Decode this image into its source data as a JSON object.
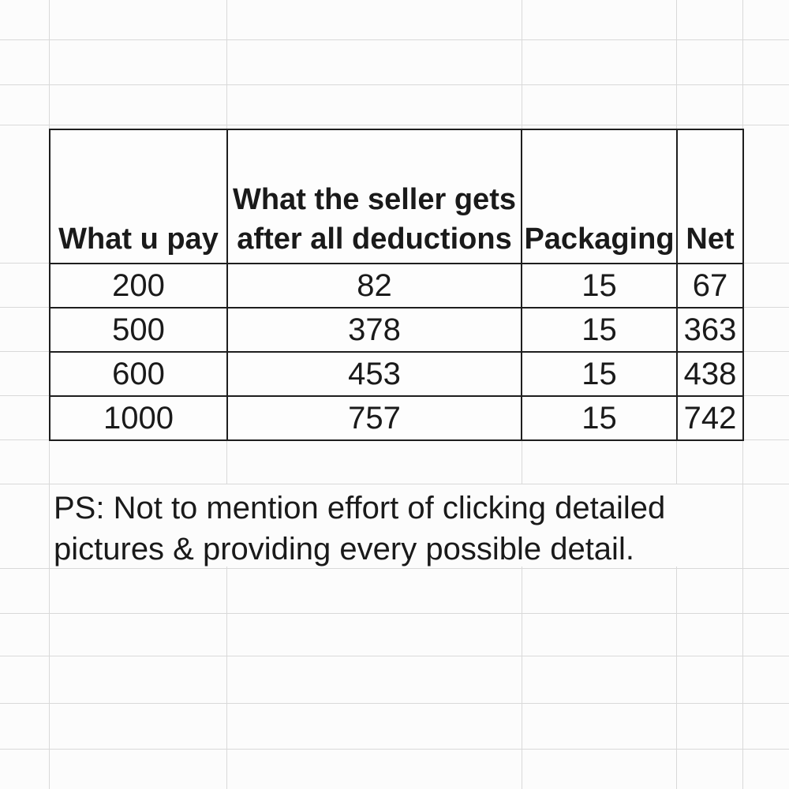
{
  "sheet": {
    "table": {
      "headers": {
        "col1": "What u pay",
        "col2_line1": "What the seller gets",
        "col2_line2": "after all deductions",
        "col3": "Packaging",
        "col4": "Net"
      },
      "rows": [
        [
          "200",
          "82",
          "15",
          "67"
        ],
        [
          "500",
          "378",
          "15",
          "363"
        ],
        [
          "600",
          "453",
          "15",
          "438"
        ],
        [
          "1000",
          "757",
          "15",
          "742"
        ]
      ]
    },
    "note_line1": "PS: Not to mention effort of clicking detailed",
    "note_line2": "pictures & providing every possible detail.",
    "colors": {
      "background": "#fcfcfc",
      "gridline": "#d9d9d9",
      "table_border": "#1e1e1e",
      "text": "#1a1a1a"
    }
  }
}
